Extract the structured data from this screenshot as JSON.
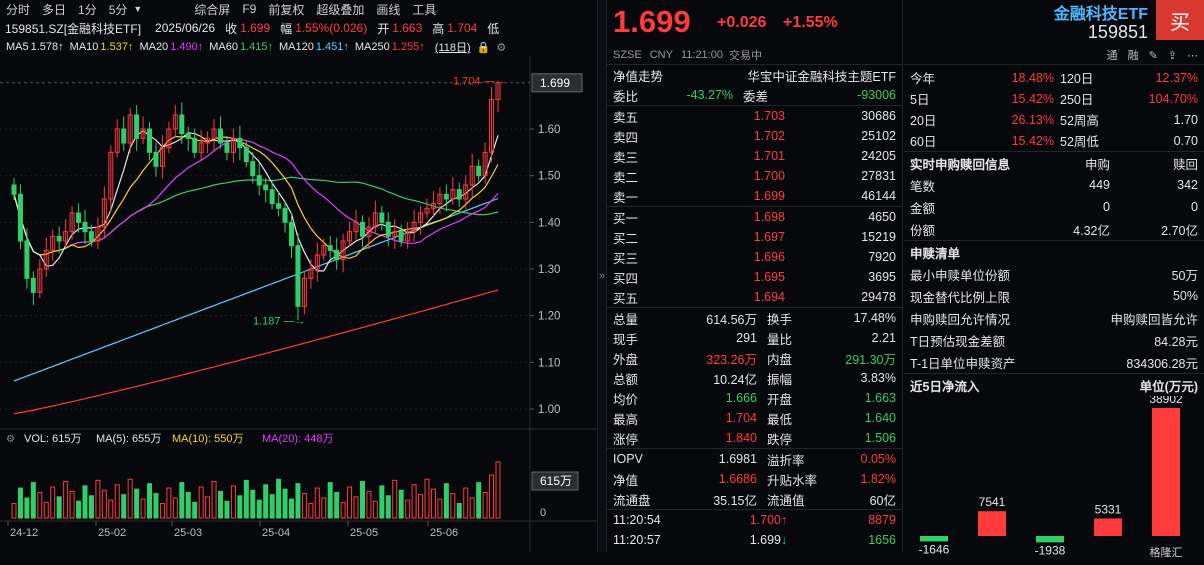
{
  "toolbar": {
    "items": [
      "分时",
      "多日",
      "1分",
      "5分",
      "综合屏",
      "F9",
      "前复权",
      "超级叠加",
      "画线",
      "工具"
    ]
  },
  "info": {
    "code": "159851.SZ[金融科技ETF]",
    "date": "2025/06/26",
    "close_label": "收",
    "close": "1.699",
    "change_label": "幅",
    "change": "1.55%(0.026)",
    "open_label": "开",
    "open": "1.663",
    "high_label": "高",
    "high": "1.704",
    "low_label": "低"
  },
  "ma": {
    "items": [
      {
        "label": "MA5",
        "value": "1.578↑",
        "color": "#e6e6e6"
      },
      {
        "label": "MA10",
        "value": "1.537↑",
        "color": "#ffd21f"
      },
      {
        "label": "MA20",
        "value": "1.490↑",
        "color": "#e040fb"
      },
      {
        "label": "MA60",
        "value": "1.415↑",
        "color": "#2fd06a"
      },
      {
        "label": "MA120",
        "value": "1.451↑",
        "color": "#4fd2ff"
      },
      {
        "label": "MA250",
        "value": "1.255↑",
        "color": "#ff3b3b"
      }
    ],
    "period": "(118日)"
  },
  "chart_data": {
    "type": "candlestick",
    "price_axis": [
      "1.60",
      "1.50",
      "1.40",
      "1.30",
      "1.20",
      "1.10",
      "1.00"
    ],
    "price_ylim": [
      0.985,
      1.735
    ],
    "current_price": "1.699",
    "high_annotation": "1.704",
    "low_annotation": "1.187",
    "x_labels": [
      "24-12",
      "25-02",
      "25-03",
      "25-04",
      "25-05",
      "25-06"
    ],
    "volume_label": "VOL: 615万",
    "volume_ma5": "MA(5): 655万",
    "volume_ma10": "MA(10): 550万",
    "volume_ma20": "MA(20): 448万",
    "volume_current": "615万",
    "volume_zero": "0",
    "closes": [
      1.46,
      1.36,
      1.28,
      1.25,
      1.3,
      1.34,
      1.37,
      1.36,
      1.38,
      1.42,
      1.4,
      1.38,
      1.36,
      1.39,
      1.45,
      1.55,
      1.6,
      1.57,
      1.63,
      1.58,
      1.6,
      1.55,
      1.52,
      1.56,
      1.6,
      1.63,
      1.59,
      1.58,
      1.55,
      1.57,
      1.58,
      1.6,
      1.57,
      1.55,
      1.58,
      1.56,
      1.53,
      1.5,
      1.48,
      1.47,
      1.44,
      1.43,
      1.4,
      1.35,
      1.22,
      1.28,
      1.3,
      1.33,
      1.35,
      1.34,
      1.32,
      1.36,
      1.38,
      1.4,
      1.37,
      1.39,
      1.42,
      1.4,
      1.37,
      1.38,
      1.36,
      1.38,
      1.4,
      1.42,
      1.43,
      1.44,
      1.46,
      1.45,
      1.47,
      1.45,
      1.48,
      1.52,
      1.5,
      1.55,
      1.663,
      1.699
    ]
  },
  "quote": {
    "price": "1.699",
    "change": "+0.026",
    "pct": "+1.55%",
    "name": "金融科技ETF",
    "code": "159851",
    "buy_button": "买",
    "market": "SZSE",
    "currency": "CNY",
    "time": "11:21:00",
    "status": "交易中",
    "toolbar_items": [
      "通",
      "融"
    ],
    "nav_trend_label": "净值走势",
    "index_name": "华宝中证金融科技主题ETF",
    "weibi_label": "委比",
    "weibi": "-43.27%",
    "weicha_label": "委差",
    "weicha": "-93006",
    "asks": [
      {
        "label": "卖五",
        "price": "1.703",
        "vol": "30686"
      },
      {
        "label": "卖四",
        "price": "1.702",
        "vol": "25102"
      },
      {
        "label": "卖三",
        "price": "1.701",
        "vol": "24205"
      },
      {
        "label": "卖二",
        "price": "1.700",
        "vol": "27831"
      },
      {
        "label": "卖一",
        "price": "1.699",
        "vol": "46144"
      }
    ],
    "bids": [
      {
        "label": "买一",
        "price": "1.698",
        "vol": "4650"
      },
      {
        "label": "买二",
        "price": "1.697",
        "vol": "15219"
      },
      {
        "label": "买三",
        "price": "1.696",
        "vol": "7920"
      },
      {
        "label": "买四",
        "price": "1.695",
        "vol": "3695"
      },
      {
        "label": "买五",
        "price": "1.694",
        "vol": "29478"
      }
    ],
    "stats": [
      {
        "l1": "总量",
        "v1": "614.56万",
        "c1": "white",
        "l2": "换手",
        "v2": "17.48%",
        "c2": "white"
      },
      {
        "l1": "现手",
        "v1": "291",
        "c1": "white",
        "l2": "量比",
        "v2": "2.21",
        "c2": "white"
      },
      {
        "l1": "外盘",
        "v1": "323.26万",
        "c1": "red",
        "l2": "内盘",
        "v2": "291.30万",
        "c2": "green"
      },
      {
        "l1": "总额",
        "v1": "10.24亿",
        "c1": "white",
        "l2": "振幅",
        "v2": "3.83%",
        "c2": "white"
      },
      {
        "l1": "均价",
        "v1": "1.666",
        "c1": "green",
        "l2": "开盘",
        "v2": "1.663",
        "c2": "green"
      },
      {
        "l1": "最高",
        "v1": "1.704",
        "c1": "red",
        "l2": "最低",
        "v2": "1.640",
        "c2": "green"
      },
      {
        "l1": "涨停",
        "v1": "1.840",
        "c1": "red",
        "l2": "跌停",
        "v2": "1.506",
        "c2": "green"
      }
    ],
    "iopv": [
      {
        "l1": "IOPV",
        "v1": "1.6981",
        "c1": "white",
        "l2": "溢折率",
        "v2": "0.05%",
        "c2": "red"
      },
      {
        "l1": "净值",
        "v1": "1.6686",
        "c1": "red",
        "l2": "升贴水率",
        "v2": "1.82%",
        "c2": "red"
      },
      {
        "l1": "流通盘",
        "v1": "35.15亿",
        "c1": "white",
        "l2": "流通值",
        "v2": "60亿",
        "c2": "white"
      }
    ],
    "ticks": [
      {
        "time": "11:20:54",
        "price": "1.700",
        "arrow": "↑",
        "vol": "8879",
        "pc": "red",
        "ac": "red",
        "vc": "red"
      },
      {
        "time": "11:20:57",
        "price": "1.699",
        "arrow": "↓",
        "vol": "1656",
        "pc": "white",
        "ac": "green",
        "vc": "green"
      }
    ]
  },
  "perf": {
    "rows": [
      {
        "l1": "今年",
        "v1": "18.48%",
        "l2": "120日",
        "v2": "12.37%",
        "c1": "red",
        "c2": "red"
      },
      {
        "l1": "5日",
        "v1": "15.42%",
        "l2": "250日",
        "v2": "104.70%",
        "c1": "red",
        "c2": "red"
      },
      {
        "l1": "20日",
        "v1": "26.13%",
        "l2": "52周高",
        "v2": "1.70",
        "c1": "red",
        "c2": "white"
      },
      {
        "l1": "60日",
        "v1": "15.42%",
        "l2": "52周低",
        "v2": "0.70",
        "c1": "red",
        "c2": "white"
      }
    ]
  },
  "redeem": {
    "title": "实时申购赎回信息",
    "col1": "申购",
    "col2": "赎回",
    "rows": [
      {
        "label": "笔数",
        "v1": "449",
        "v2": "342"
      },
      {
        "label": "金额",
        "v1": "0",
        "v2": "0"
      },
      {
        "label": "份额",
        "v1": "4.32亿",
        "v2": "2.70亿"
      }
    ]
  },
  "list": {
    "title": "申赎清单",
    "rows": [
      {
        "label": "最小申赎单位份额",
        "value": "50万"
      },
      {
        "label": "现金替代比例上限",
        "value": "50%"
      },
      {
        "label": "申购赎回允许情况",
        "value": "申购赎回皆允许"
      },
      {
        "label": "T日预估现金差额",
        "value": "84.28元"
      },
      {
        "label": "T-1日单位申赎资产",
        "value": "834306.28元"
      }
    ]
  },
  "flow": {
    "title": "近5日净流入",
    "unit": "单位(万元)",
    "values": [
      -1646,
      7541,
      -1938,
      5331,
      38902
    ],
    "labels": [
      "-1646",
      "7541",
      "-1938",
      "5331",
      "38902"
    ],
    "brand": "格隆汇"
  }
}
